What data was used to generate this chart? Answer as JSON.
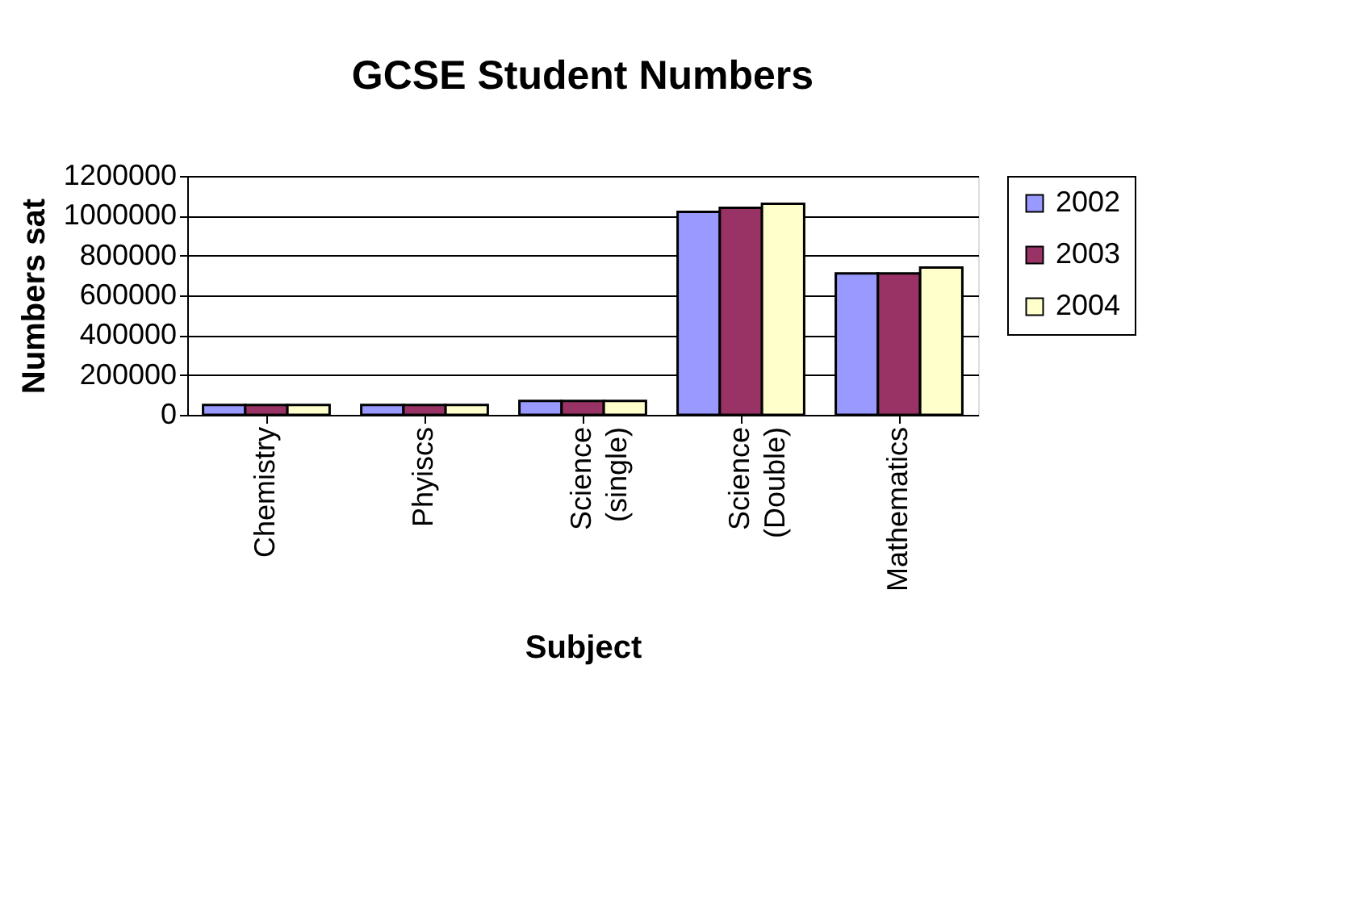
{
  "chart_data": {
    "type": "bar",
    "title": "GCSE Student Numbers",
    "xlabel": "Subject",
    "ylabel": "Numbers sat",
    "categories": [
      "Chemistry",
      "Phyiscs",
      "Science (single)",
      "Science (Double)",
      "Mathematics"
    ],
    "series": [
      {
        "name": "2002",
        "color": "#9999ff",
        "values": [
          50000,
          50000,
          70000,
          1020000,
          710000
        ]
      },
      {
        "name": "2003",
        "color": "#993366",
        "values": [
          50000,
          50000,
          70000,
          1040000,
          710000
        ]
      },
      {
        "name": "2004",
        "color": "#ffffcc",
        "values": [
          50000,
          50000,
          70000,
          1060000,
          740000
        ]
      }
    ],
    "ylim": [
      0,
      1200000
    ],
    "yticks": [
      0,
      200000,
      400000,
      600000,
      800000,
      1000000,
      1200000
    ],
    "grid": "y",
    "legend": "right"
  }
}
